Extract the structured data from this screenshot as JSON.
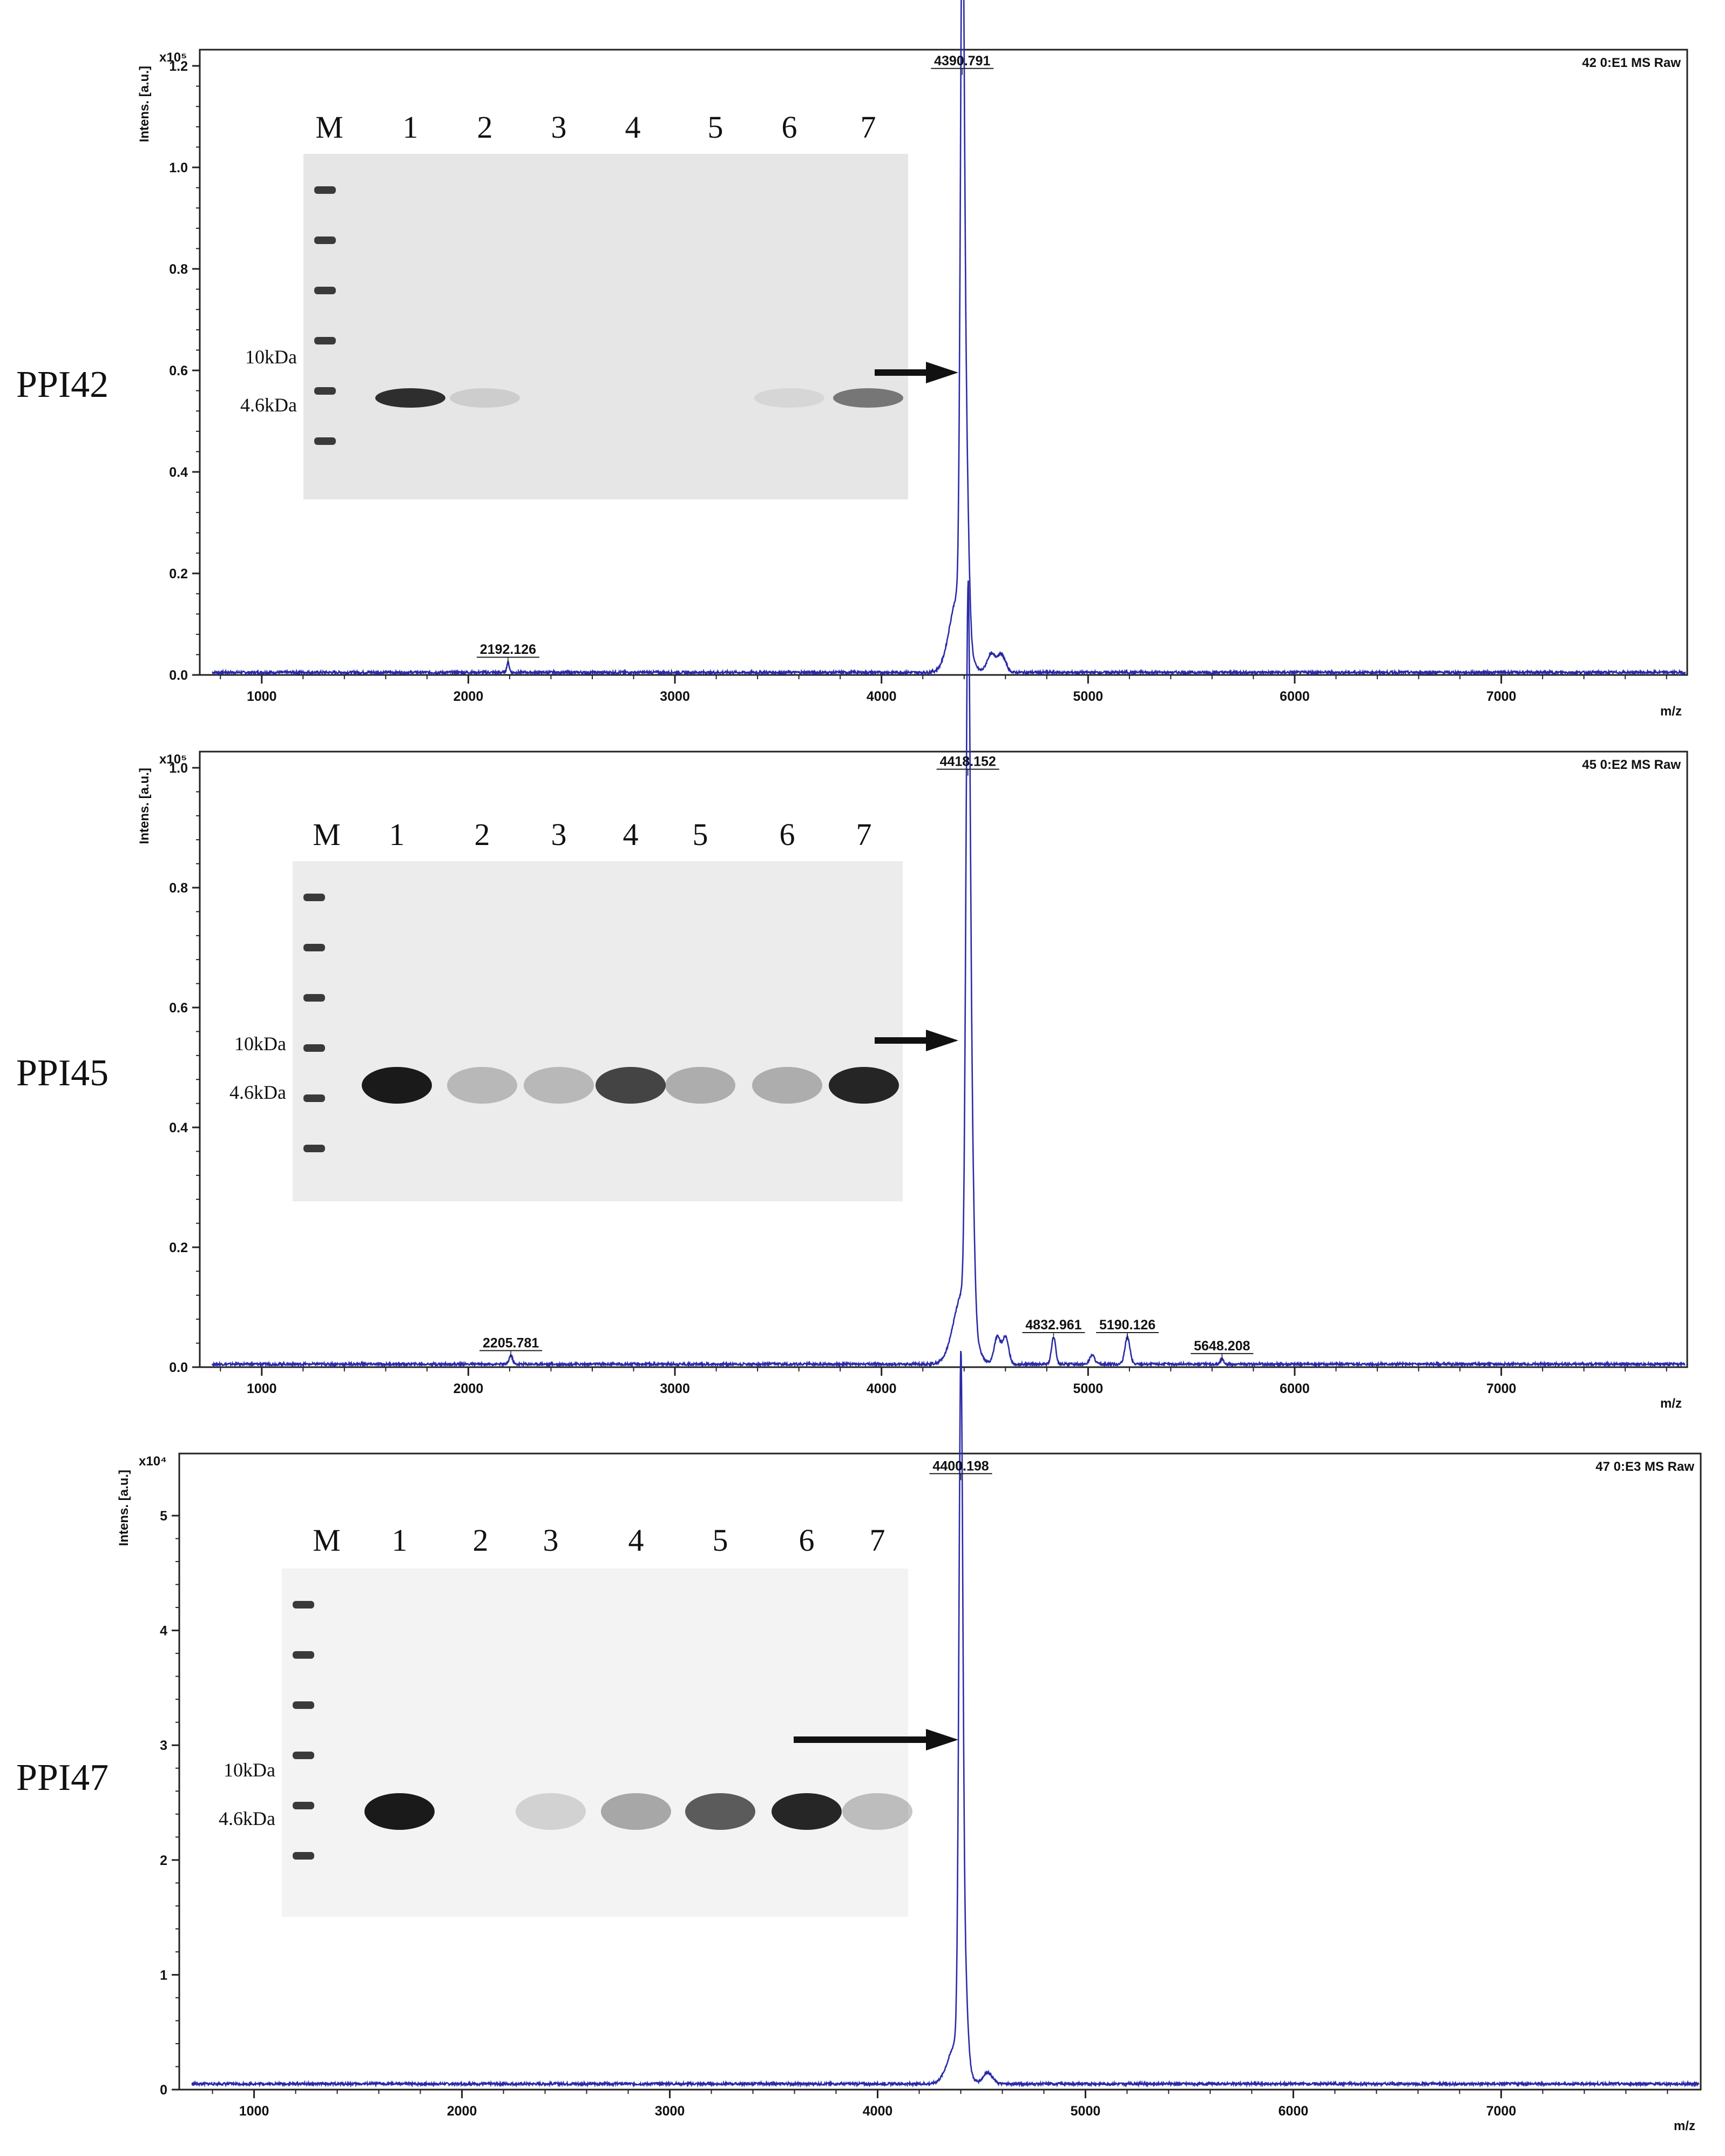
{
  "chart_data": [
    {
      "type": "line",
      "sample_label": "PPI42",
      "spectrum_label": "42 0:E1 MS Raw",
      "ylabel": "Intens. [a.u.]",
      "y_exponent_label": "x10⁵",
      "xlabel": "m/z",
      "xlim": [
        700,
        7900
      ],
      "ylim": [
        0,
        1.2
      ],
      "x_ticks": [
        1000,
        2000,
        3000,
        4000,
        5000,
        6000,
        7000
      ],
      "y_ticks": [
        0.0,
        0.2,
        0.4,
        0.6,
        0.8,
        1.0,
        1.2
      ],
      "y_tick_labels": [
        "0.0",
        "0.2",
        "0.4",
        "0.6",
        "0.8",
        "1.0",
        "1.2"
      ],
      "baseline": 0.005,
      "spectrum_color": "#2a2aa8",
      "peak_labels": [
        {
          "x": 4390.791,
          "y": 1.18,
          "label": "4390.791"
        },
        {
          "x": 2192.126,
          "y": 0.02,
          "label": "2192.126"
        }
      ],
      "peaks": [
        {
          "x": 4390.791,
          "y": 1.175,
          "w": 9
        },
        {
          "x": 4405,
          "y": 0.44,
          "w": 14
        },
        {
          "x": 4370,
          "y": 0.15,
          "w": 40
        },
        {
          "x": 4530,
          "y": 0.035,
          "w": 20
        },
        {
          "x": 4580,
          "y": 0.035,
          "w": 20
        },
        {
          "x": 2192.126,
          "y": 0.02,
          "w": 6
        }
      ],
      "gel": {
        "lanes": [
          "M",
          "1",
          "2",
          "3",
          "4",
          "5",
          "6",
          "7"
        ],
        "markers": [
          "10kDa",
          "4.6kDa"
        ],
        "background": "#e6e6e6"
      }
    },
    {
      "type": "line",
      "sample_label": "PPI45",
      "spectrum_label": "45 0:E2 MS Raw",
      "ylabel": "Intens. [a.u.]",
      "y_exponent_label": "x10⁵",
      "xlabel": "m/z",
      "xlim": [
        700,
        7900
      ],
      "ylim": [
        0,
        1.0
      ],
      "x_ticks": [
        1000,
        2000,
        3000,
        4000,
        5000,
        6000,
        7000
      ],
      "y_ticks": [
        0.0,
        0.2,
        0.4,
        0.6,
        0.8,
        1.0
      ],
      "y_tick_labels": [
        "0.0",
        "0.2",
        "0.4",
        "0.6",
        "0.8",
        "1.0"
      ],
      "baseline": 0.005,
      "spectrum_color": "#2a2aa8",
      "peak_labels": [
        {
          "x": 4418.152,
          "y": 0.985,
          "label": "4418.152"
        },
        {
          "x": 2205.781,
          "y": 0.015,
          "label": "2205.781"
        },
        {
          "x": 4832.961,
          "y": 0.045,
          "label": "4832.961"
        },
        {
          "x": 5190.126,
          "y": 0.045,
          "label": "5190.126"
        },
        {
          "x": 5648.208,
          "y": 0.01,
          "label": "5648.208"
        }
      ],
      "peaks": [
        {
          "x": 4418.152,
          "y": 0.985,
          "w": 10
        },
        {
          "x": 4432,
          "y": 0.34,
          "w": 14
        },
        {
          "x": 4395,
          "y": 0.12,
          "w": 45
        },
        {
          "x": 4560,
          "y": 0.045,
          "w": 15
        },
        {
          "x": 4600,
          "y": 0.045,
          "w": 15
        },
        {
          "x": 4832.961,
          "y": 0.045,
          "w": 10
        },
        {
          "x": 5190.126,
          "y": 0.045,
          "w": 12
        },
        {
          "x": 5020,
          "y": 0.015,
          "w": 12
        },
        {
          "x": 2205.781,
          "y": 0.015,
          "w": 8
        },
        {
          "x": 5648.208,
          "y": 0.008,
          "w": 8
        }
      ],
      "gel": {
        "lanes": [
          "M",
          "1",
          "2",
          "3",
          "4",
          "5",
          "6",
          "7"
        ],
        "markers": [
          "10kDa",
          "4.6kDa"
        ],
        "background": "#ececec"
      }
    },
    {
      "type": "line",
      "sample_label": "PPI47",
      "spectrum_label": "47 0:E3 MS Raw",
      "ylabel": "Intens. [a.u.]",
      "y_exponent_label": "x10⁴",
      "xlabel": "m/z",
      "xlim": [
        640,
        7960
      ],
      "ylim": [
        0,
        5.4
      ],
      "x_ticks": [
        1000,
        2000,
        3000,
        4000,
        5000,
        6000,
        7000
      ],
      "y_ticks": [
        0,
        1,
        2,
        3,
        4,
        5
      ],
      "y_tick_labels": [
        "0",
        "1",
        "2",
        "3",
        "4",
        "5"
      ],
      "baseline": 0.05,
      "spectrum_color": "#2a2aa8",
      "peak_labels": [
        {
          "x": 4400.198,
          "y": 5.3,
          "label": "4400.198"
        }
      ],
      "peaks": [
        {
          "x": 4400.198,
          "y": 5.25,
          "w": 9
        },
        {
          "x": 4412,
          "y": 1.1,
          "w": 16
        },
        {
          "x": 4380,
          "y": 0.35,
          "w": 40
        },
        {
          "x": 4530,
          "y": 0.1,
          "w": 22
        }
      ],
      "gel": {
        "lanes": [
          "M",
          "1",
          "2",
          "3",
          "4",
          "5",
          "6",
          "7"
        ],
        "markers": [
          "10kDa",
          "4.6kDa"
        ],
        "background": "#f3f3f3"
      }
    }
  ]
}
